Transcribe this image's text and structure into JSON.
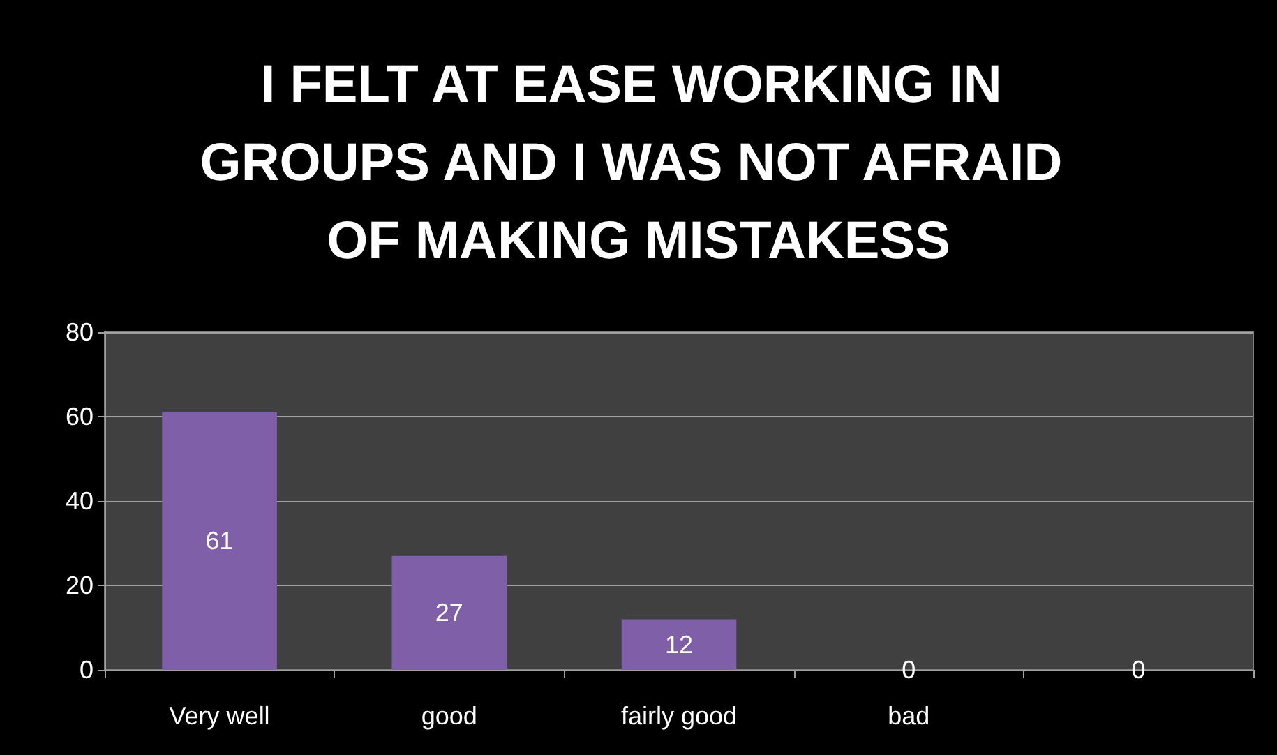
{
  "chart_data": {
    "type": "bar",
    "title": "I FELT AT EASE WORKING IN GROUPS AND I WAS NOT AFRAID OF MAKING MISTAKESS",
    "categories": [
      "Very well",
      "good",
      "fairly good",
      "bad",
      null
    ],
    "values": [
      61,
      27,
      12,
      0,
      0
    ],
    "color": "#7f5fa8",
    "ylim": [
      0,
      80
    ],
    "yticks": [
      0,
      20,
      40,
      60,
      80
    ],
    "grid": "y",
    "data_labels": true
  }
}
